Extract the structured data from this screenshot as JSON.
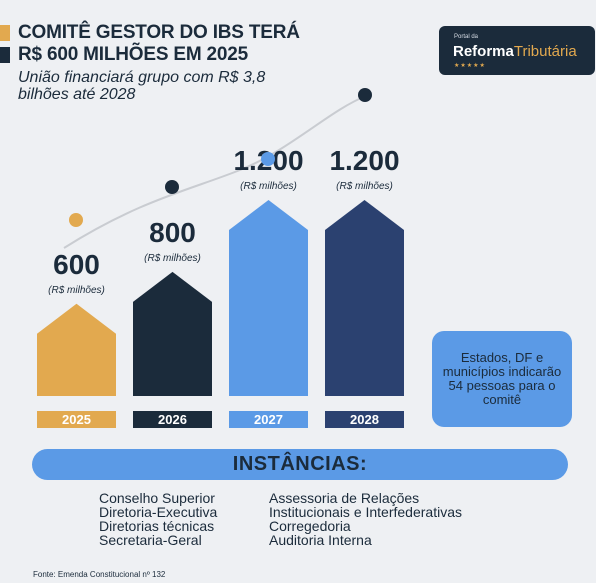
{
  "header": {
    "title_line1": "COMITÊ GESTOR DO IBS TERÁ",
    "title_line2": "R$ 600 MILHÕES EM 2025",
    "subtitle": "União financiará grupo com R$ 3,8 bilhões até 2028"
  },
  "logo": {
    "small": "Portal da",
    "main_bold": "Reforma",
    "main_light": "Tributária"
  },
  "chart_data": {
    "type": "bar",
    "categories": [
      "2025",
      "2026",
      "2027",
      "2028"
    ],
    "values": [
      600,
      800,
      1200,
      1200
    ],
    "value_labels": [
      "600",
      "800",
      "1.200",
      "1.200"
    ],
    "unit_label": "(R$ milhões)",
    "colors": [
      "#e2a94f",
      "#1b2b3b",
      "#5b9ae6",
      "#2b4170"
    ],
    "trend_dot_colors": [
      "#e2a94f",
      "#1b2b3b",
      "#5b9ae6",
      "#1b2b3b"
    ],
    "ylim": [
      0,
      1200
    ]
  },
  "note": "Estados, DF e municípios indicarão 54 pessoas para o comitê",
  "instancias": {
    "title": "INSTÂNCIAS:",
    "left": [
      "Conselho Superior",
      "Diretoria-Executiva",
      "Diretorias técnicas",
      "Secretaria-Geral"
    ],
    "right": [
      "Assessoria de Relações",
      "Institucionais e Interfederativas",
      "Corregedoria",
      "Auditoria Interna"
    ]
  },
  "source": "Fonte: Emenda Constitucional nº 132",
  "colors": {
    "accent_gold": "#e2a94f",
    "navy": "#1b2b3b",
    "blue": "#5b9ae6",
    "dark_blue": "#2b4170",
    "background": "#eef0f3"
  }
}
